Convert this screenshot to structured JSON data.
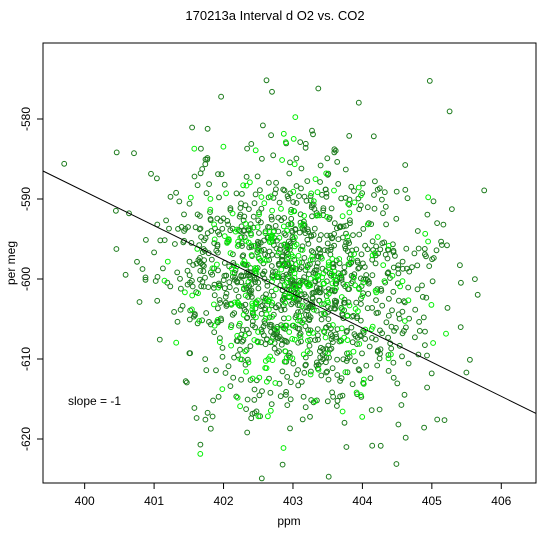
{
  "chart_data": {
    "type": "scatter",
    "title": "170213a   Interval d O2 vs. CO2",
    "xlabel": "ppm",
    "ylabel": "per meg",
    "xlim": [
      399.4,
      406.5
    ],
    "ylim": [
      -625.5,
      -570.5
    ],
    "x_ticks": [
      400,
      401,
      402,
      403,
      404,
      405,
      406
    ],
    "y_ticks": [
      -580,
      -590,
      -600,
      -610,
      -620
    ],
    "grid": false,
    "annotation": "slope =  -1",
    "regression_line": {
      "x": [
        399.4,
        406.5
      ],
      "y": [
        -586.5,
        -616.8
      ],
      "color": "#000000"
    },
    "series": [
      {
        "color": "#1a7a1a",
        "n": 1150,
        "x_mean": 403.0,
        "x_sd": 0.95,
        "y_mean": -600.0,
        "y_sd": 7.8,
        "slope": -1,
        "seed": 11
      },
      {
        "color": "#00ee00",
        "n": 320,
        "x_mean": 403.0,
        "x_sd": 0.75,
        "y_mean": -600.0,
        "y_sd": 7.0,
        "slope": -1,
        "seed": 29
      }
    ]
  }
}
